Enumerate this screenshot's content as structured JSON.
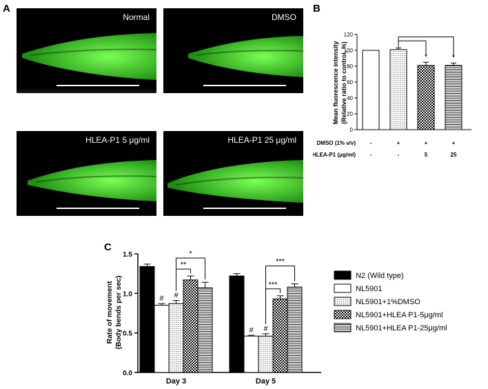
{
  "panels": {
    "a_label": "A",
    "b_label": "B",
    "c_label": "C"
  },
  "micrographs": [
    {
      "caption": "Normal"
    },
    {
      "caption": "DMSO"
    },
    {
      "caption": "HLEA-P1 5 μg/ml"
    },
    {
      "caption": "HLEA-P1 25 μg/ml"
    }
  ],
  "colors": {
    "worm_green": "#39d42a",
    "worm_dark": "#0c2a08",
    "bar_black": "#000000",
    "bar_white": "#ffffff"
  },
  "chart_data": [
    {
      "type": "bar",
      "panel": "B",
      "ylabel": "Mean fluorescence intensity\n(Relative ratio to control, %)",
      "ylim": [
        0,
        120
      ],
      "yticks": [
        0,
        20,
        40,
        60,
        80,
        100,
        120
      ],
      "values": [
        100,
        101,
        81,
        81
      ],
      "errors": [
        0,
        2,
        4,
        3
      ],
      "patterns": [
        "white",
        "dots",
        "checker",
        "hlines"
      ],
      "row_labels": [
        {
          "label": "DMSO (1% v/v)",
          "values": [
            "-",
            "+",
            "+",
            "+"
          ]
        },
        {
          "label": "HLEA-P1 (μg/ml)",
          "values": [
            "-",
            "-",
            "5",
            "25"
          ]
        }
      ],
      "significance": [
        {
          "from": 1,
          "to": 2,
          "text": "*"
        },
        {
          "from": 1,
          "to": 3,
          "text": "*"
        }
      ]
    },
    {
      "type": "bar",
      "panel": "C",
      "ylabel": "Rate of movement\n(Body bends per sec)",
      "ylim": [
        0,
        1.5
      ],
      "yticks": [
        "0.0",
        "0.5",
        "1.0",
        "1.5"
      ],
      "categories": [
        "Day 3",
        "Day 5"
      ],
      "series": [
        {
          "name": "N2 (Wild type)",
          "pattern": "black",
          "values": [
            1.34,
            1.22
          ],
          "errors": [
            0.03,
            0.03
          ],
          "marks": [
            "",
            ""
          ]
        },
        {
          "name": "NL5901",
          "pattern": "white",
          "values": [
            0.85,
            0.46
          ],
          "errors": [
            0.02,
            0.01
          ],
          "marks": [
            "#",
            "#"
          ]
        },
        {
          "name": "NL5901+1%DMSO",
          "pattern": "dots",
          "values": [
            0.87,
            0.46
          ],
          "errors": [
            0.04,
            0.03
          ],
          "marks": [
            "#",
            "#"
          ]
        },
        {
          "name": "NL5901+HLEA P1-5μg/ml",
          "pattern": "checker",
          "values": [
            1.17,
            0.93
          ],
          "errors": [
            0.05,
            0.04
          ],
          "marks": [
            "",
            ""
          ]
        },
        {
          "name": "NL5901+HLEA P1-25μg/ml",
          "pattern": "hlines",
          "values": [
            1.07,
            1.08
          ],
          "errors": [
            0.07,
            0.04
          ],
          "marks": [
            "",
            ""
          ]
        }
      ],
      "significance": [
        {
          "category": 0,
          "from": 2,
          "to": 3,
          "text": "**"
        },
        {
          "category": 0,
          "from": 2,
          "to": 4,
          "text": "*"
        },
        {
          "category": 1,
          "from": 2,
          "to": 3,
          "text": "***"
        },
        {
          "category": 1,
          "from": 2,
          "to": 4,
          "text": "***"
        }
      ],
      "legend": "right"
    }
  ]
}
